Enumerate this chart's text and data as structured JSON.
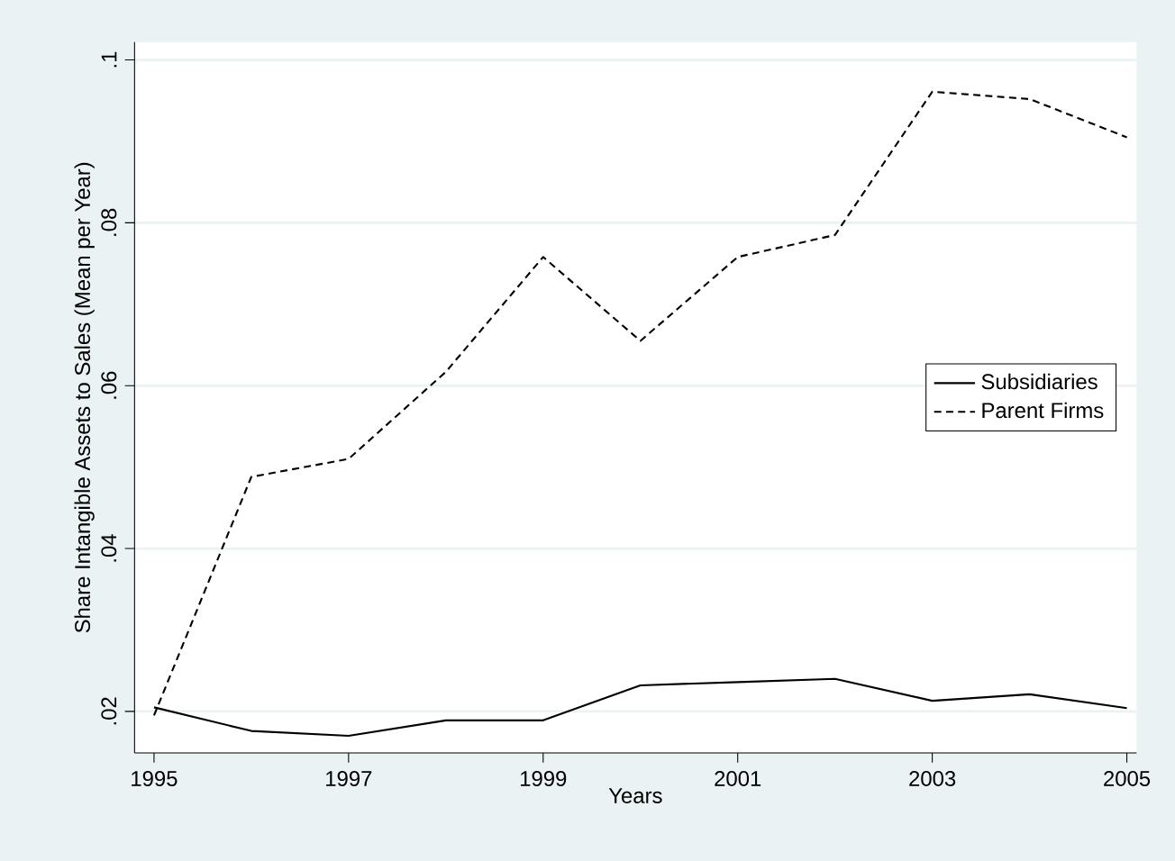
{
  "chart_data": {
    "type": "line",
    "xlabel": "Years",
    "ylabel": "Share Intangible Assets to Sales (Mean per Year)",
    "x": [
      1995,
      1996,
      1997,
      1998,
      1999,
      2000,
      2001,
      2002,
      2003,
      2004,
      2005
    ],
    "series": [
      {
        "name": "Subsidiaries",
        "color": "#000000",
        "line_style": "solid",
        "values": [
          0.0205,
          0.0176,
          0.017,
          0.0189,
          0.0189,
          0.0232,
          0.0236,
          0.024,
          0.0213,
          0.0221,
          0.0204
        ]
      },
      {
        "name": "Parent Firms",
        "color": "#000000",
        "line_style": "dashed",
        "values": [
          0.0195,
          0.0488,
          0.051,
          0.0617,
          0.0758,
          0.0655,
          0.0758,
          0.0785,
          0.0961,
          0.0952,
          0.0905
        ]
      }
    ],
    "xlim": [
      1994.8,
      2005.1
    ],
    "ylim": [
      0.0149,
      0.1022
    ],
    "xticks": [
      1995,
      1997,
      1999,
      2001,
      2003,
      2005
    ],
    "yticks": [
      {
        "value": 0.02,
        "label": ".02"
      },
      {
        "value": 0.04,
        "label": ".04"
      },
      {
        "value": 0.06,
        "label": ".06"
      },
      {
        "value": 0.08,
        "label": ".08"
      },
      {
        "value": 0.1,
        "label": ".1"
      }
    ],
    "grid": "y",
    "legend": "right",
    "marker": "none"
  }
}
